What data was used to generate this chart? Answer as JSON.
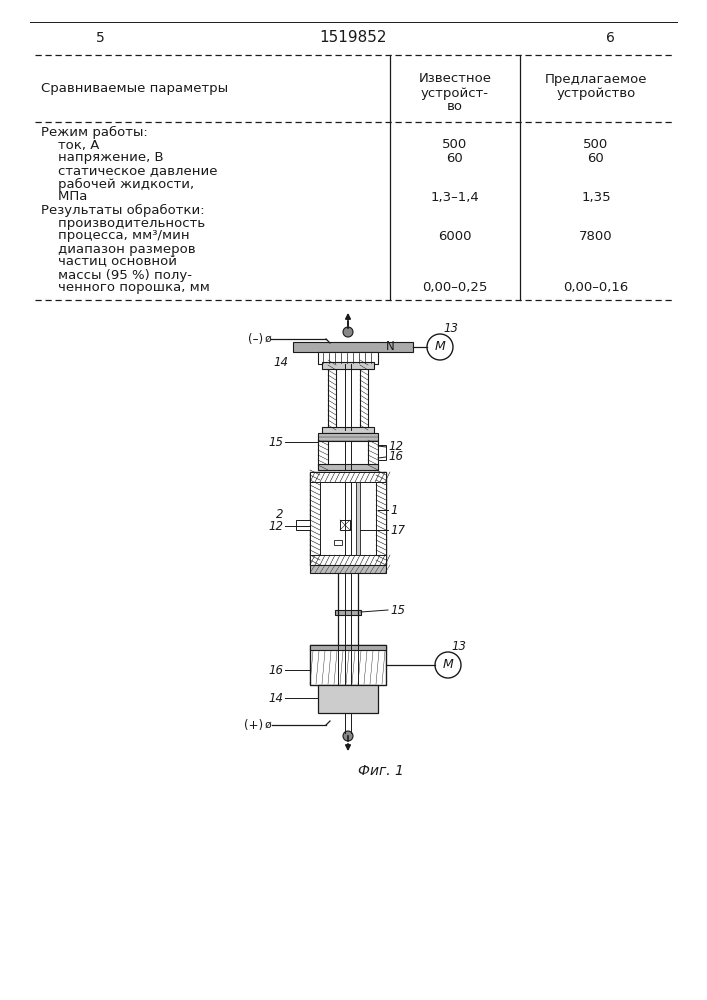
{
  "page_number_left": "5",
  "page_number_center": "1519852",
  "page_number_right": "6",
  "table": {
    "col1_header": "Сравниваемые параметры",
    "col2_header_line1": "Известное",
    "col2_header_line2": "устройст-",
    "col2_header_line3": "во",
    "col3_header_line1": "Предлагаемое",
    "col3_header_line2": "устройство",
    "rows": [
      {
        "label": "Режим работы:",
        "indent": false,
        "val1": "",
        "val2": ""
      },
      {
        "label": "    ток, А",
        "indent": false,
        "val1": "500",
        "val2": "500"
      },
      {
        "label": "    напряжение, В",
        "indent": false,
        "val1": "60",
        "val2": "60"
      },
      {
        "label": "    статическое давление",
        "indent": false,
        "val1": "",
        "val2": ""
      },
      {
        "label": "    рабочей жидкости,",
        "indent": false,
        "val1": "",
        "val2": ""
      },
      {
        "label": "    МПа",
        "indent": false,
        "val1": "1,3–1,4",
        "val2": "1,35"
      },
      {
        "label": "Результаты обработки:",
        "indent": false,
        "val1": "",
        "val2": ""
      },
      {
        "label": "    производительность",
        "indent": false,
        "val1": "",
        "val2": ""
      },
      {
        "label": "    процесса, мм³/мин",
        "indent": false,
        "val1": "6000",
        "val2": "7800"
      },
      {
        "label": "    диапазон размеров",
        "indent": false,
        "val1": "",
        "val2": ""
      },
      {
        "label": "    частиц основной",
        "indent": false,
        "val1": "",
        "val2": ""
      },
      {
        "label": "    массы (95 %) полу-",
        "indent": false,
        "val1": "",
        "val2": ""
      },
      {
        "label": "    ченного порошка, мм",
        "indent": false,
        "val1": "0,00–0,25",
        "val2": "0,00–0,16"
      }
    ]
  },
  "fig_caption": "Фиг. 1",
  "background_color": "#ffffff",
  "line_color": "#1a1a1a",
  "text_color": "#1a1a1a"
}
